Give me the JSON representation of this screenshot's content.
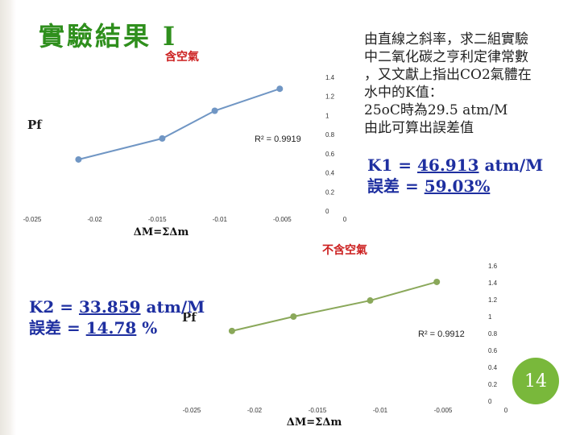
{
  "header": {
    "title": "實驗結果 I"
  },
  "note": {
    "lines": [
      "由直線之斜率，求二組實驗",
      "中二氧化碳之亨利定律常數",
      "，又文獻上指出CO2氣體在",
      "水中的K值：",
      "25oC時為29.5 atm/M",
      "由此可算出誤差值"
    ]
  },
  "result1": {
    "k_prefix": "K1 = ",
    "k_value": "46.913",
    "k_unit": "  atm/M",
    "err_prefix": "誤差 = ",
    "err_value": "59.03%"
  },
  "result2": {
    "k_prefix": "K2 = ",
    "k_value": "33.859",
    "k_unit": "  atm/M",
    "err_prefix": "誤差 = ",
    "err_value": "14.78",
    "err_unit": " %"
  },
  "page_number": "14",
  "colors": {
    "title": "#2f8f1d",
    "subtitle": "#cc1f1f",
    "series1": "#7096c4",
    "series2": "#8aa85a",
    "result": "#1e2fa0",
    "badge": "#79b83b"
  },
  "chart_data": [
    {
      "type": "scatter",
      "title": "含空氣",
      "xlabel": "ΔM=ΣΔm",
      "ylabel": "Pf",
      "r2_label": "R² = 0.9919",
      "xlim": [
        -0.025,
        0
      ],
      "ylim": [
        0,
        1.4
      ],
      "x_ticks": [
        "-0.025",
        "-0.02",
        "-0.015",
        "-0.01",
        "-0.005",
        "0"
      ],
      "y_ticks": [
        "0",
        "0.2",
        "0.4",
        "0.6",
        "0.8",
        "1",
        "1.2",
        "1.4"
      ],
      "grid": false,
      "series": [
        {
          "x": [
            -0.0213,
            -0.0146,
            -0.0104,
            -0.0052
          ],
          "y": [
            0.54,
            0.76,
            1.05,
            1.28
          ]
        }
      ]
    },
    {
      "type": "scatter",
      "title": "不含空氣",
      "xlabel": "ΔM=ΣΔm",
      "ylabel": "Pf",
      "r2_label": "R² = 0.9912",
      "xlim": [
        -0.025,
        0
      ],
      "ylim": [
        0,
        1.6
      ],
      "x_ticks": [
        "-0.025",
        "-0.02",
        "-0.015",
        "-0.01",
        "-0.005",
        "0"
      ],
      "y_ticks": [
        "0",
        "0.2",
        "0.4",
        "0.6",
        "0.8",
        "1",
        "1.2",
        "1.4",
        "1.6"
      ],
      "grid": false,
      "series": [
        {
          "x": [
            -0.0218,
            -0.0169,
            -0.0108,
            -0.0055
          ],
          "y": [
            0.83,
            1.0,
            1.19,
            1.41
          ]
        }
      ]
    }
  ]
}
